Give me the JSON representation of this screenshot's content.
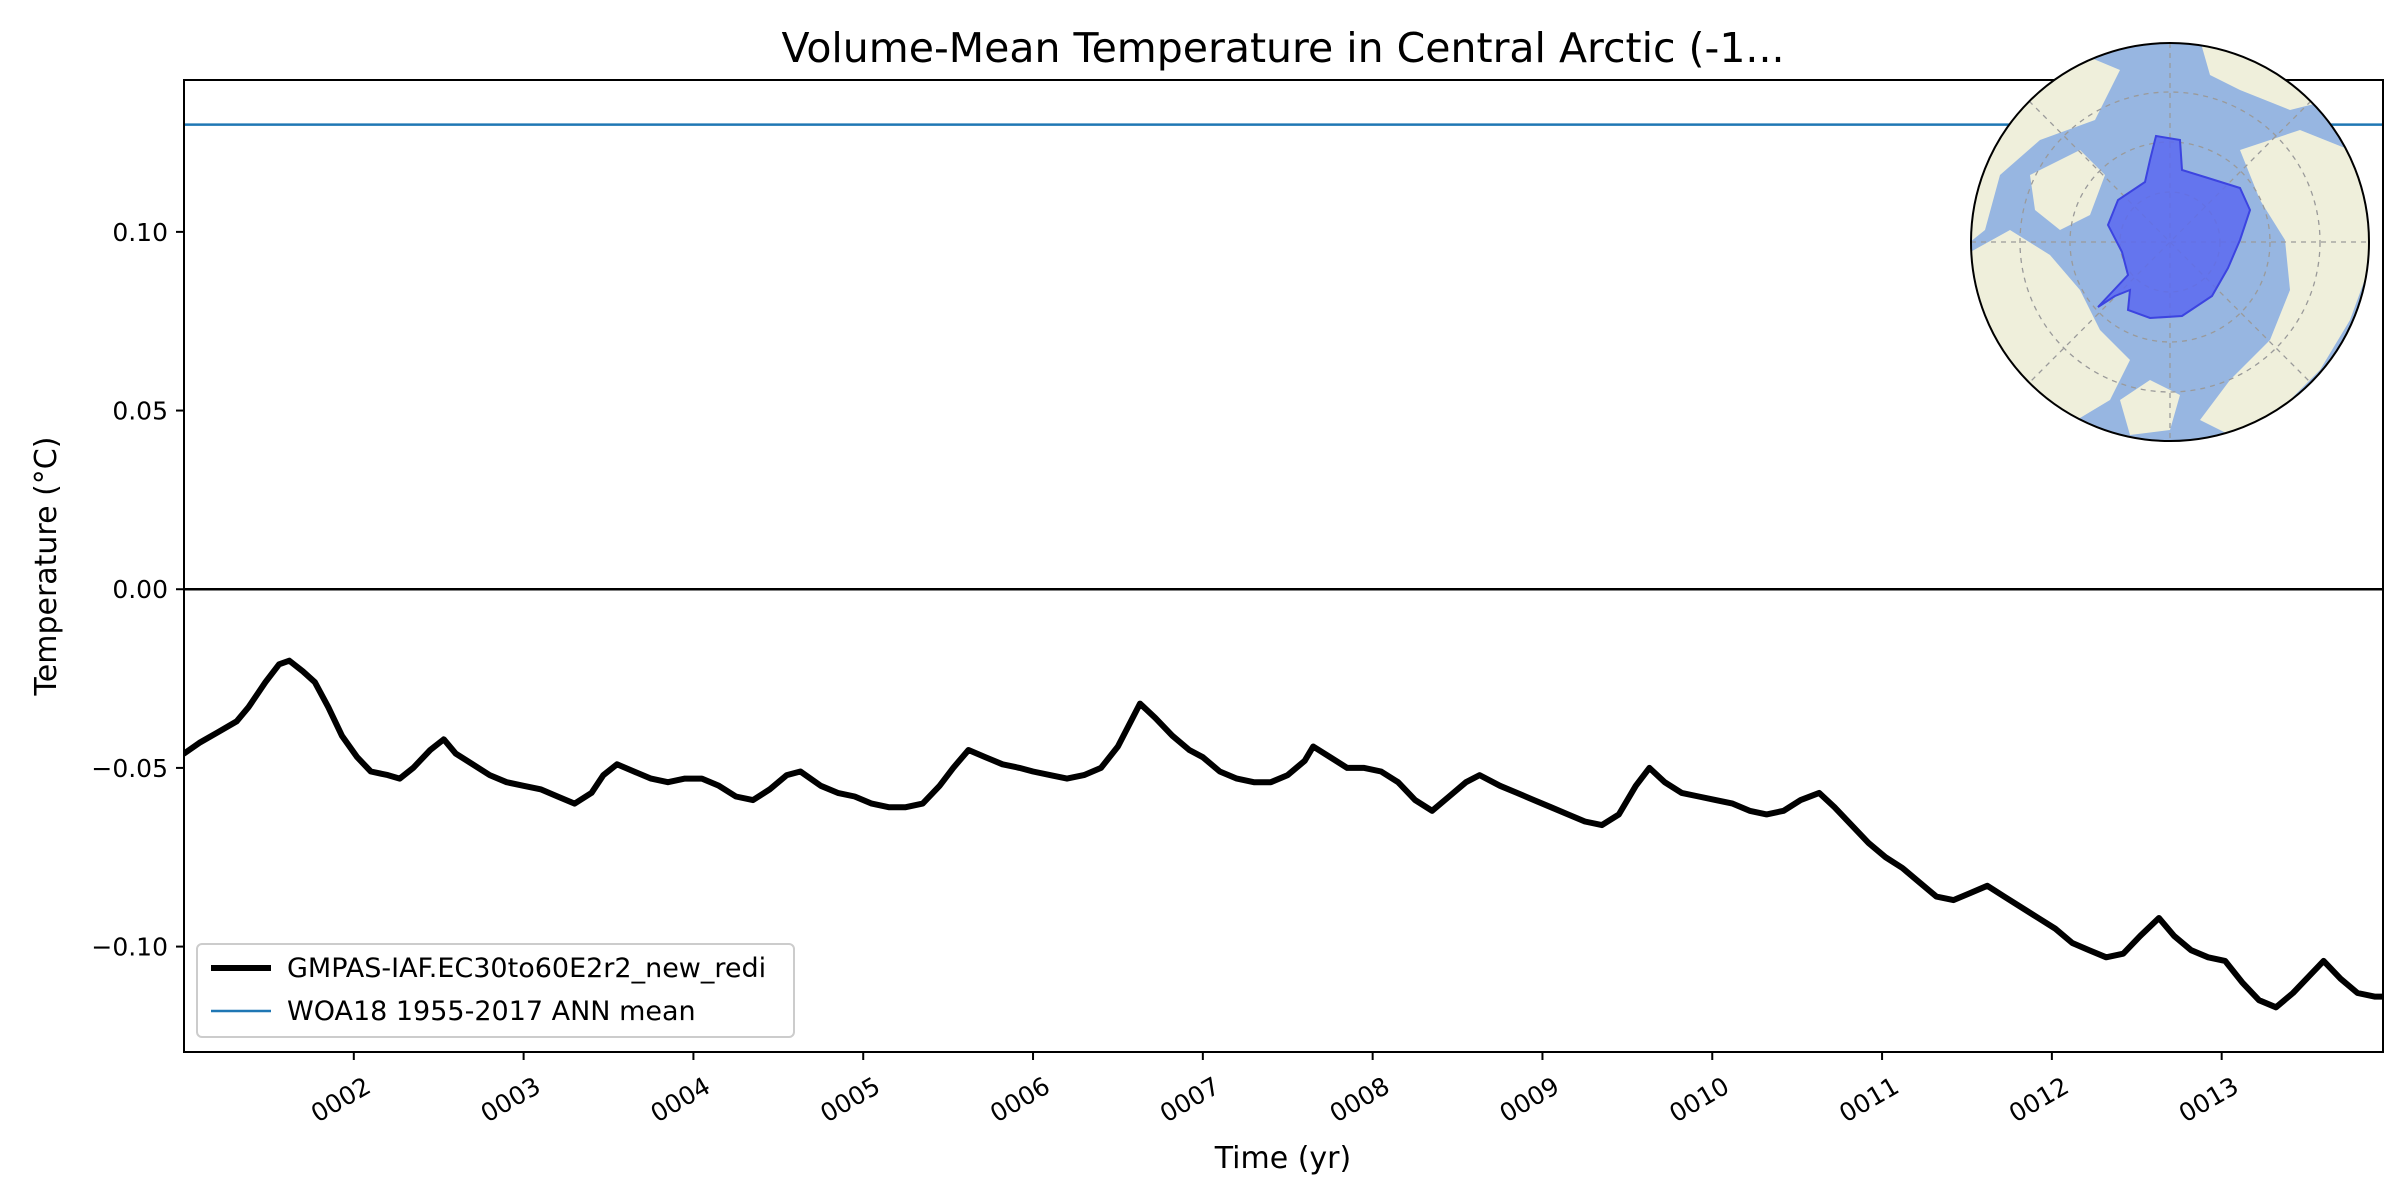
{
  "chart_data": {
    "type": "line",
    "title": "Volume-Mean Temperature in Central Arctic (-1...",
    "xlabel": "Time (yr)",
    "ylabel": "Temperature ($^\\circ$C)",
    "ylabel_display": "Temperature (°C)",
    "xlim": [
      1.0,
      13.95
    ],
    "ylim": [
      -0.1295,
      0.1425
    ],
    "x_ticks": [
      {
        "value": 2,
        "label": "0002"
      },
      {
        "value": 3,
        "label": "0003"
      },
      {
        "value": 4,
        "label": "0004"
      },
      {
        "value": 5,
        "label": "0005"
      },
      {
        "value": 6,
        "label": "0006"
      },
      {
        "value": 7,
        "label": "0007"
      },
      {
        "value": 8,
        "label": "0008"
      },
      {
        "value": 9,
        "label": "0009"
      },
      {
        "value": 10,
        "label": "0010"
      },
      {
        "value": 11,
        "label": "0011"
      },
      {
        "value": 12,
        "label": "0012"
      },
      {
        "value": 13,
        "label": "0013"
      }
    ],
    "y_ticks": [
      {
        "value": -0.1,
        "label": "−0.10"
      },
      {
        "value": -0.05,
        "label": "−0.05"
      },
      {
        "value": 0.0,
        "label": "0.00"
      },
      {
        "value": 0.05,
        "label": "0.05"
      },
      {
        "value": 0.1,
        "label": "0.10"
      }
    ],
    "zero_line": 0.0,
    "grid": false,
    "legend_position": "lower-left",
    "series": [
      {
        "name": "GMPAS-IAF.EC30to60E2r2_new_redi",
        "color": "#000000",
        "style": "thick-solid",
        "points": [
          [
            1.0,
            -0.046
          ],
          [
            1.09,
            -0.043
          ],
          [
            1.2,
            -0.04
          ],
          [
            1.31,
            -0.037
          ],
          [
            1.38,
            -0.033
          ],
          [
            1.48,
            -0.026
          ],
          [
            1.56,
            -0.021
          ],
          [
            1.62,
            -0.02
          ],
          [
            1.7,
            -0.023
          ],
          [
            1.77,
            -0.026
          ],
          [
            1.85,
            -0.033
          ],
          [
            1.93,
            -0.041
          ],
          [
            2.02,
            -0.047
          ],
          [
            2.1,
            -0.051
          ],
          [
            2.2,
            -0.052
          ],
          [
            2.27,
            -0.053
          ],
          [
            2.35,
            -0.05
          ],
          [
            2.45,
            -0.045
          ],
          [
            2.53,
            -0.042
          ],
          [
            2.6,
            -0.046
          ],
          [
            2.7,
            -0.049
          ],
          [
            2.8,
            -0.052
          ],
          [
            2.9,
            -0.054
          ],
          [
            3.0,
            -0.055
          ],
          [
            3.1,
            -0.056
          ],
          [
            3.2,
            -0.058
          ],
          [
            3.3,
            -0.06
          ],
          [
            3.4,
            -0.057
          ],
          [
            3.47,
            -0.052
          ],
          [
            3.55,
            -0.049
          ],
          [
            3.65,
            -0.051
          ],
          [
            3.75,
            -0.053
          ],
          [
            3.85,
            -0.054
          ],
          [
            3.95,
            -0.053
          ],
          [
            4.05,
            -0.053
          ],
          [
            4.15,
            -0.055
          ],
          [
            4.25,
            -0.058
          ],
          [
            4.35,
            -0.059
          ],
          [
            4.45,
            -0.056
          ],
          [
            4.55,
            -0.052
          ],
          [
            4.63,
            -0.051
          ],
          [
            4.75,
            -0.055
          ],
          [
            4.85,
            -0.057
          ],
          [
            4.95,
            -0.058
          ],
          [
            5.05,
            -0.06
          ],
          [
            5.15,
            -0.061
          ],
          [
            5.25,
            -0.061
          ],
          [
            5.35,
            -0.06
          ],
          [
            5.45,
            -0.055
          ],
          [
            5.53,
            -0.05
          ],
          [
            5.62,
            -0.045
          ],
          [
            5.72,
            -0.047
          ],
          [
            5.82,
            -0.049
          ],
          [
            5.92,
            -0.05
          ],
          [
            6.0,
            -0.051
          ],
          [
            6.1,
            -0.052
          ],
          [
            6.2,
            -0.053
          ],
          [
            6.3,
            -0.052
          ],
          [
            6.4,
            -0.05
          ],
          [
            6.5,
            -0.044
          ],
          [
            6.63,
            -0.032
          ],
          [
            6.72,
            -0.036
          ],
          [
            6.82,
            -0.041
          ],
          [
            6.92,
            -0.045
          ],
          [
            7.0,
            -0.047
          ],
          [
            7.1,
            -0.051
          ],
          [
            7.2,
            -0.053
          ],
          [
            7.3,
            -0.054
          ],
          [
            7.4,
            -0.054
          ],
          [
            7.5,
            -0.052
          ],
          [
            7.6,
            -0.048
          ],
          [
            7.65,
            -0.044
          ],
          [
            7.75,
            -0.047
          ],
          [
            7.85,
            -0.05
          ],
          [
            7.95,
            -0.05
          ],
          [
            8.05,
            -0.051
          ],
          [
            8.15,
            -0.054
          ],
          [
            8.25,
            -0.059
          ],
          [
            8.35,
            -0.062
          ],
          [
            8.45,
            -0.058
          ],
          [
            8.55,
            -0.054
          ],
          [
            8.63,
            -0.052
          ],
          [
            8.75,
            -0.055
          ],
          [
            8.85,
            -0.057
          ],
          [
            8.95,
            -0.059
          ],
          [
            9.05,
            -0.061
          ],
          [
            9.15,
            -0.063
          ],
          [
            9.25,
            -0.065
          ],
          [
            9.35,
            -0.066
          ],
          [
            9.45,
            -0.063
          ],
          [
            9.55,
            -0.055
          ],
          [
            9.63,
            -0.05
          ],
          [
            9.72,
            -0.054
          ],
          [
            9.82,
            -0.057
          ],
          [
            9.92,
            -0.058
          ],
          [
            10.02,
            -0.059
          ],
          [
            10.12,
            -0.06
          ],
          [
            10.22,
            -0.062
          ],
          [
            10.32,
            -0.063
          ],
          [
            10.42,
            -0.062
          ],
          [
            10.52,
            -0.059
          ],
          [
            10.63,
            -0.057
          ],
          [
            10.72,
            -0.061
          ],
          [
            10.82,
            -0.066
          ],
          [
            10.92,
            -0.071
          ],
          [
            11.02,
            -0.075
          ],
          [
            11.12,
            -0.078
          ],
          [
            11.22,
            -0.082
          ],
          [
            11.32,
            -0.086
          ],
          [
            11.42,
            -0.087
          ],
          [
            11.52,
            -0.085
          ],
          [
            11.62,
            -0.083
          ],
          [
            11.72,
            -0.086
          ],
          [
            11.82,
            -0.089
          ],
          [
            11.92,
            -0.092
          ],
          [
            12.02,
            -0.095
          ],
          [
            12.12,
            -0.099
          ],
          [
            12.22,
            -0.101
          ],
          [
            12.32,
            -0.103
          ],
          [
            12.42,
            -0.102
          ],
          [
            12.52,
            -0.097
          ],
          [
            12.63,
            -0.092
          ],
          [
            12.72,
            -0.097
          ],
          [
            12.82,
            -0.101
          ],
          [
            12.92,
            -0.103
          ],
          [
            13.02,
            -0.104
          ],
          [
            13.12,
            -0.11
          ],
          [
            13.22,
            -0.115
          ],
          [
            13.32,
            -0.117
          ],
          [
            13.42,
            -0.113
          ],
          [
            13.52,
            -0.108
          ],
          [
            13.6,
            -0.104
          ],
          [
            13.7,
            -0.109
          ],
          [
            13.8,
            -0.113
          ],
          [
            13.9,
            -0.114
          ],
          [
            13.95,
            -0.114
          ]
        ]
      },
      {
        "name": "WOA18 1955-2017 ANN mean",
        "color": "#1f77b4",
        "style": "thin-solid",
        "constant": 0.13
      }
    ],
    "inset": {
      "type": "polar-map",
      "region": "Central Arctic",
      "ocean_color": "#97b6e1",
      "land_color": "#efefdb",
      "region_color": "#5a6af0",
      "position": "top-right"
    }
  }
}
